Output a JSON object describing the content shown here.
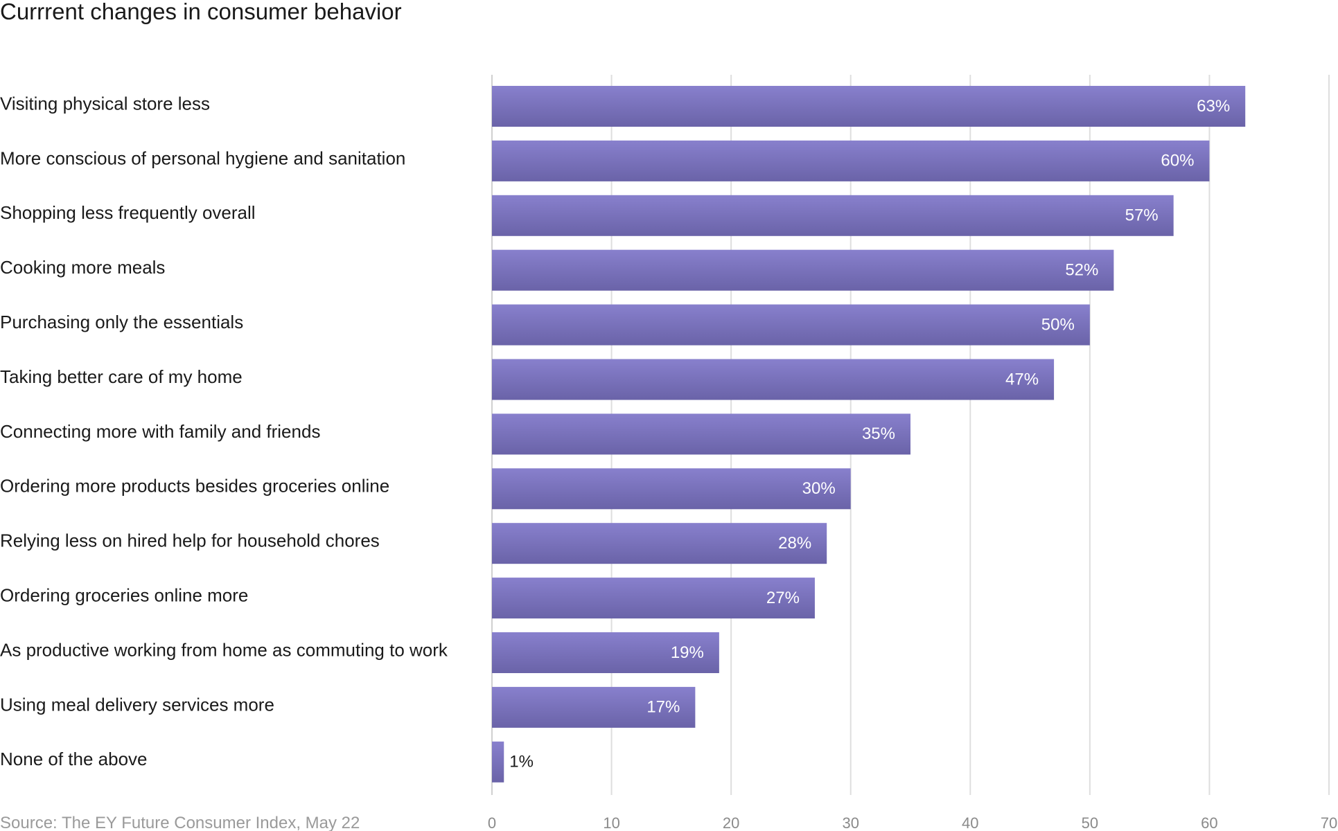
{
  "chart_data": {
    "type": "bar",
    "orientation": "horizontal",
    "title": "Currrent changes in consumer behavior",
    "source": "Source: The EY Future Consumer Index, May 22",
    "categories": [
      "Visiting physical store less",
      "More conscious of personal hygiene and sanitation",
      "Shopping less frequently overall",
      "Cooking more meals",
      "Purchasing only the essentials",
      "Taking better care of my home",
      "Connecting more with family and friends",
      "Ordering more products besides groceries online",
      "Relying less on hired help for household chores",
      "Ordering groceries online more",
      "As productive working from home as commuting to work",
      "Using meal delivery services more",
      "None of the above"
    ],
    "values": [
      63,
      60,
      57,
      52,
      50,
      47,
      35,
      30,
      28,
      27,
      19,
      17,
      1
    ],
    "value_labels": [
      "63%",
      "60%",
      "57%",
      "52%",
      "50%",
      "47%",
      "35%",
      "30%",
      "28%",
      "27%",
      "19%",
      "17%",
      "1%"
    ],
    "xlim": [
      0,
      70
    ],
    "xticks": [
      0,
      10,
      20,
      30,
      40,
      50,
      60,
      70
    ],
    "xlabel": "",
    "ylabel": "",
    "grid": true,
    "legend": "none",
    "colors": {
      "bar_top": "#8880cd",
      "bar_bottom": "#6a63a8",
      "grid": "#dedede",
      "tick_text": "#8a8a8a",
      "source_text": "#9a9a9a"
    }
  }
}
